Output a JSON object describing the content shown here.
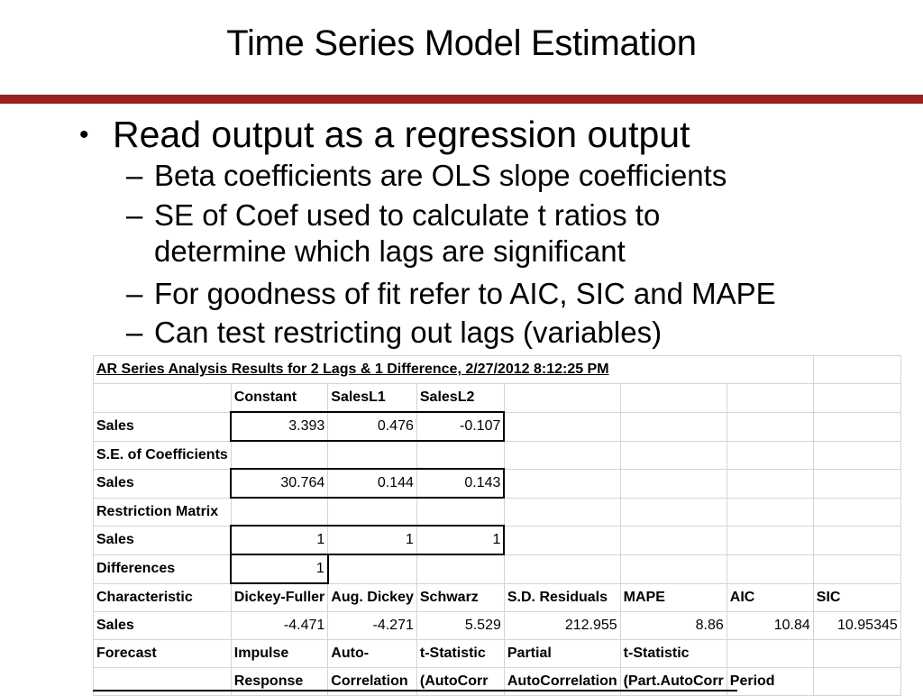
{
  "slide": {
    "title": "Time Series Model Estimation",
    "bullet": "Read output as a regression output",
    "bullet_marker": "•",
    "sub_marker": "–",
    "sub_bullets": [
      "Beta coefficients are OLS slope coefficients",
      "SE of Coef used to calculate t ratios to",
      "determine which lags are significant",
      "For goodness of fit refer to AIC, SIC and MAPE",
      "Can test restricting out lags (variables)"
    ]
  },
  "table": {
    "header": "AR Series Analysis Results for 2 Lags & 1 Difference, 2/27/2012 8:12:25 PM",
    "rows": [
      [
        "",
        "Constant",
        "SalesL1",
        "SalesL2",
        "",
        "",
        "",
        ""
      ],
      [
        "Sales",
        "3.393",
        "0.476",
        "-0.107",
        "",
        "",
        "",
        ""
      ],
      [
        "S.E. of Coefficients",
        "",
        "",
        "",
        "",
        "",
        "",
        ""
      ],
      [
        "Sales",
        "30.764",
        "0.144",
        "0.143",
        "",
        "",
        "",
        ""
      ],
      [
        "Restriction Matrix",
        "",
        "",
        "",
        "",
        "",
        "",
        ""
      ],
      [
        "Sales",
        "1",
        "1",
        "1",
        "",
        "",
        "",
        ""
      ],
      [
        "Differences",
        "1",
        "",
        "",
        "",
        "",
        "",
        ""
      ],
      [
        "Characteristic",
        "Dickey-Fuller",
        "Aug. Dickey",
        "Schwarz",
        "S.D. Residuals",
        "MAPE",
        "AIC",
        "SIC"
      ],
      [
        "Sales",
        "-4.471",
        "-4.271",
        "5.529",
        "212.955",
        "8.86",
        "10.84",
        "10.95345"
      ],
      [
        "Forecast",
        "Impulse",
        "Auto-",
        "t-Statistic",
        "Partial",
        "t-Statistic",
        "",
        ""
      ],
      [
        "",
        "Response",
        "Correlation",
        "(AutoCorr",
        "AutoCorrelation",
        "(Part.AutoCorr",
        "Period",
        ""
      ]
    ]
  }
}
